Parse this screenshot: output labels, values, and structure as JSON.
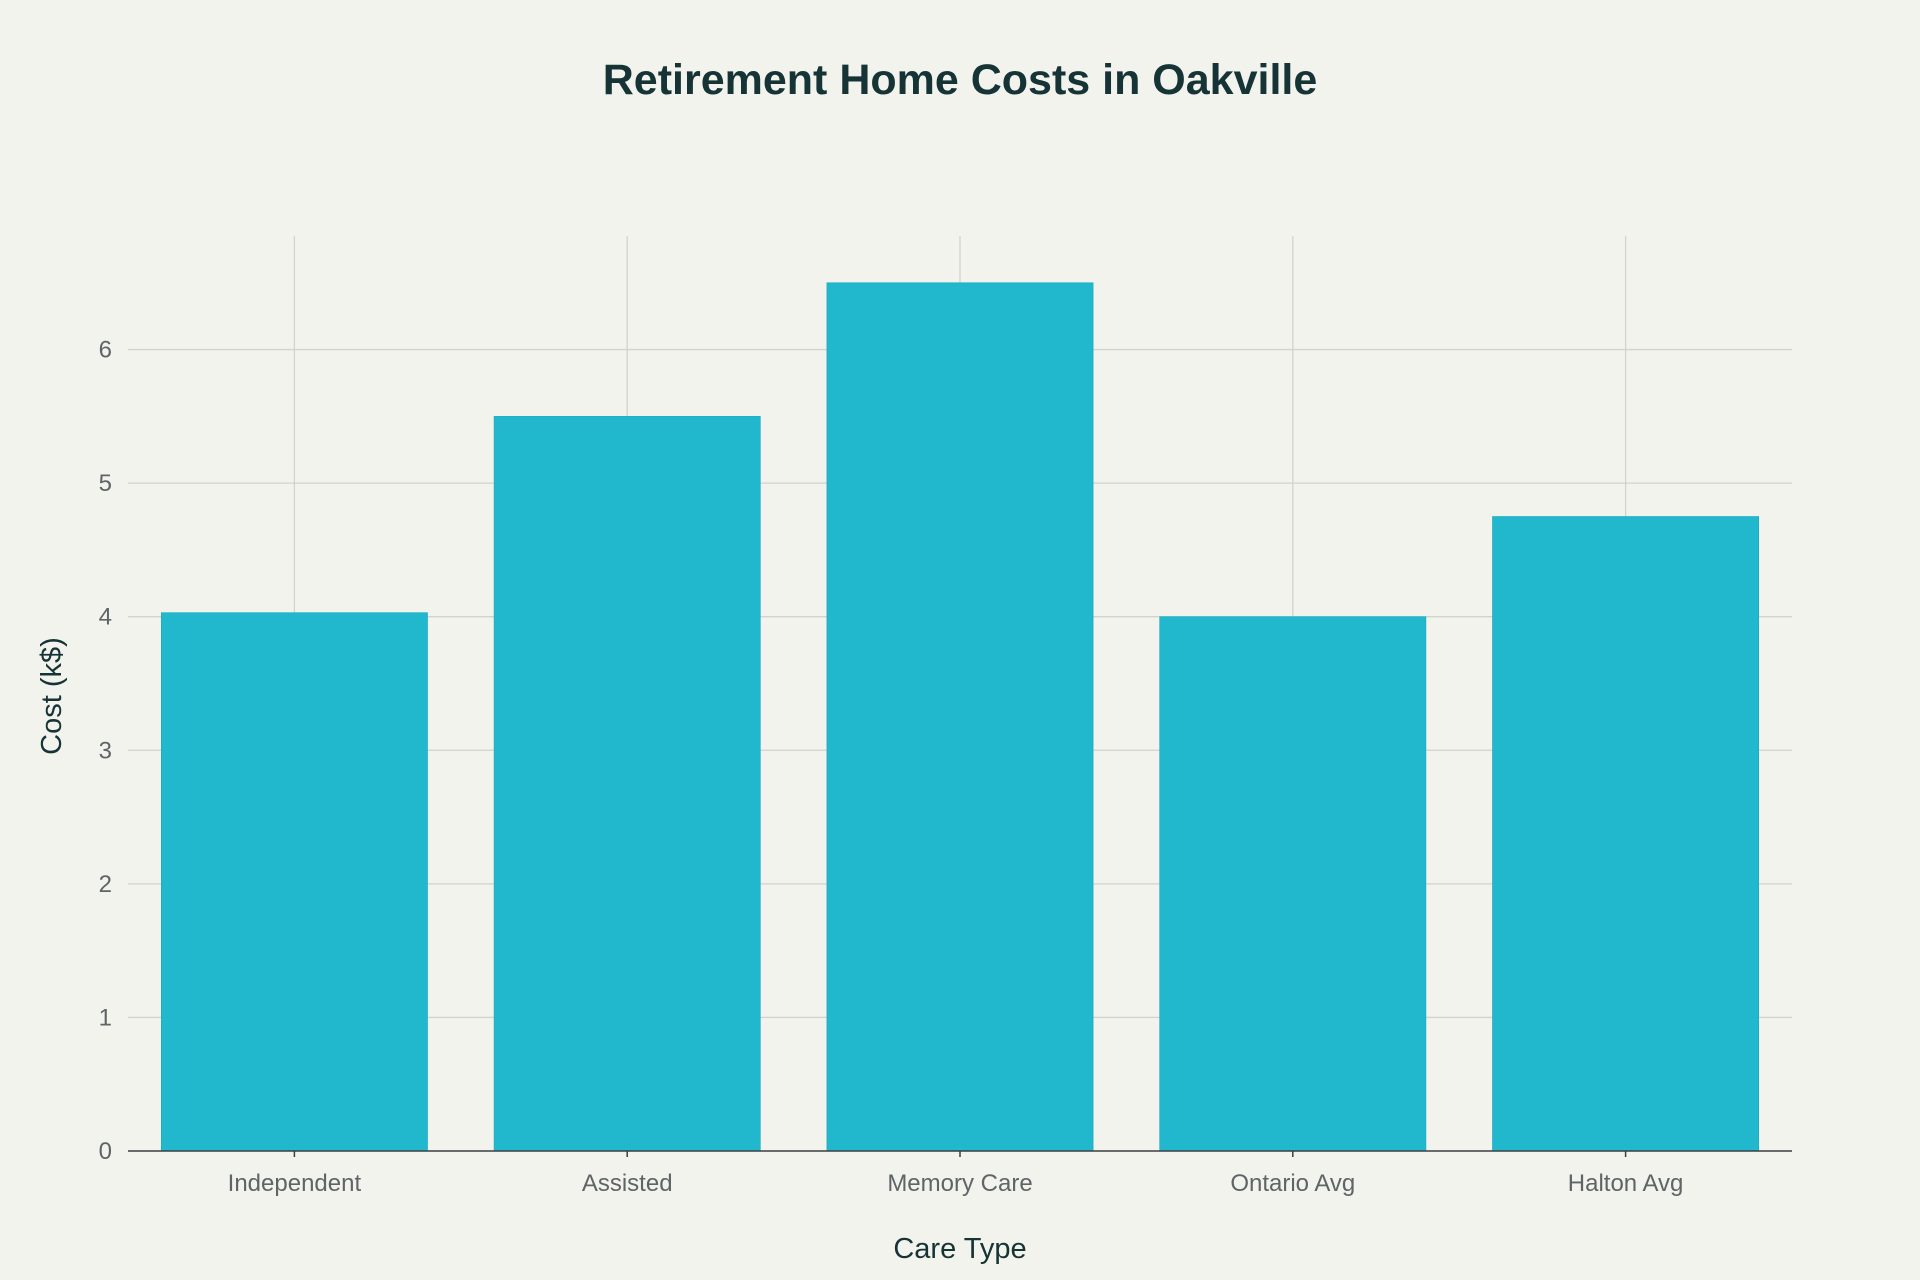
{
  "chart_data": {
    "type": "bar",
    "title": "Retirement Home Costs in Oakville",
    "xlabel": "Care Type",
    "ylabel": "Cost (k$)",
    "categories": [
      "Independent",
      "Assisted",
      "Memory Care",
      "Ontario Avg",
      "Halton Avg"
    ],
    "values": [
      4.03,
      5.5,
      6.5,
      4.0,
      4.75
    ],
    "ylim": [
      0,
      6.85
    ],
    "yticks": [
      0,
      1,
      2,
      3,
      4,
      5,
      6
    ],
    "grid": true,
    "legend": "none",
    "colors": {
      "bar": "#21b7cc",
      "background": "#f3f3ee",
      "grid": "#d2d3cf",
      "text": "#163336",
      "tick": "#5f6466"
    }
  }
}
